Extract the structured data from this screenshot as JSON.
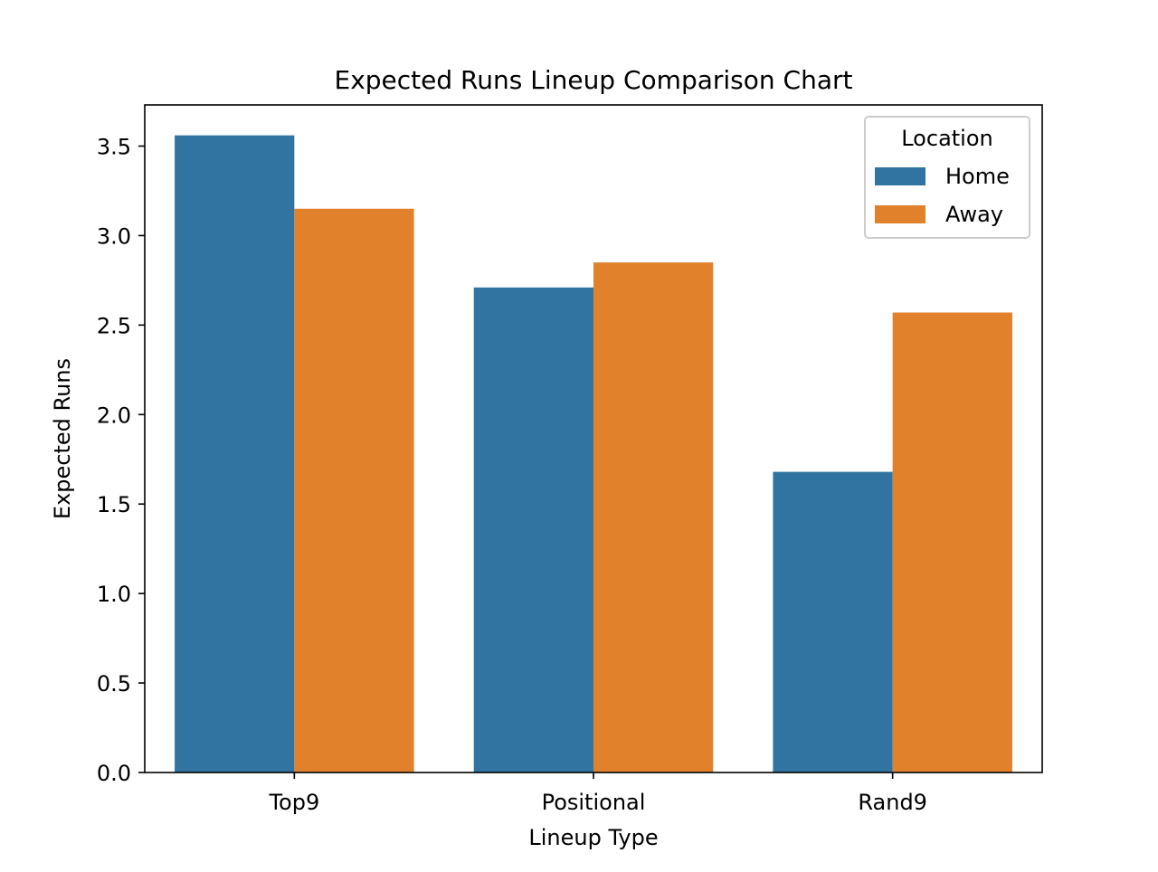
{
  "chart_data": {
    "type": "bar",
    "title": "Expected Runs Lineup Comparison Chart",
    "xlabel": "Lineup Type",
    "ylabel": "Expected Runs",
    "categories": [
      "Top9",
      "Positional",
      "Rand9"
    ],
    "series": [
      {
        "name": "Home",
        "color": "#3274a1",
        "values": [
          3.56,
          2.71,
          1.68
        ]
      },
      {
        "name": "Away",
        "color": "#e1812c",
        "values": [
          3.15,
          2.85,
          2.57
        ]
      }
    ],
    "ylim": [
      0,
      3.73
    ],
    "yticks": [
      0.0,
      0.5,
      1.0,
      1.5,
      2.0,
      2.5,
      3.0,
      3.5
    ],
    "ytick_labels": [
      "0.0",
      "0.5",
      "1.0",
      "1.5",
      "2.0",
      "2.5",
      "3.0",
      "3.5"
    ],
    "legend": {
      "title": "Location",
      "placement": "top-right"
    },
    "grid": false
  }
}
